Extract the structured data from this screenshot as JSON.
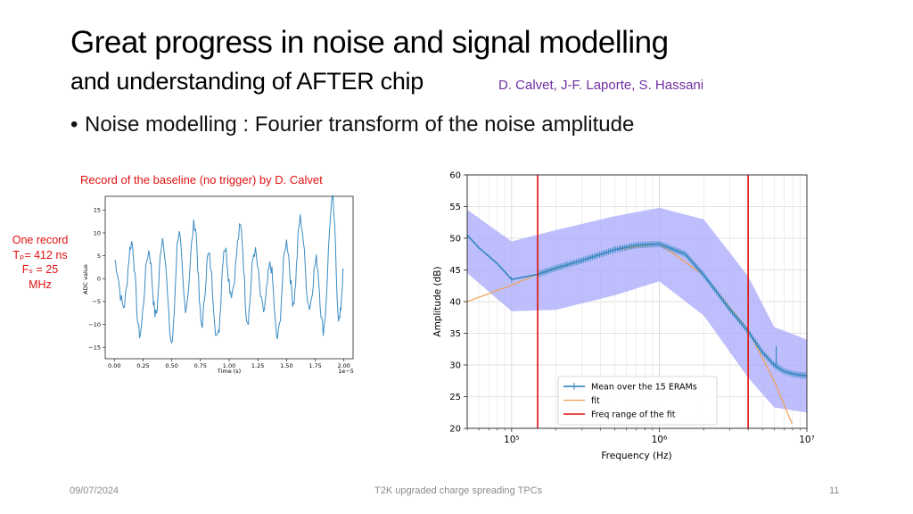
{
  "slide": {
    "title_line1": "Great progress in noise and signal modelling",
    "title_line2": "and understanding of AFTER chip",
    "authors": "D. Calvet, J-F. Laporte, S. Hassani",
    "bullet": "Noise modelling : Fourier transform of the noise amplitude",
    "record_caption": "Record of the baseline (no trigger) by D. Calvet",
    "note_lines": [
      "One record",
      "Tₚ= 412 ns",
      "Fₛ = 25",
      "MHz"
    ],
    "footer_date": "09/07/2024",
    "footer_title": "T2K upgraded charge spreading TPCs",
    "page_number": "11"
  },
  "colors": {
    "accent_red": "#e01010",
    "author_purple": "#7030a0",
    "trace_blue": "#3a8bc3",
    "band": "#a8a8fb",
    "fit_orange": "#f0a050"
  },
  "chart_data": [
    {
      "type": "line",
      "title": "",
      "xlabel": "Time (s)",
      "ylabel": "ADC value",
      "x_multiplier": "1e−5",
      "xlim": [
        -8e-07,
        2.08e-05
      ],
      "ylim": [
        -17.5,
        18
      ],
      "xticks": [
        "0.00",
        "0.25",
        "0.50",
        "0.75",
        "1.00",
        "1.25",
        "1.50",
        "1.75",
        "2.00"
      ],
      "yticks": [
        "15",
        "10",
        "5",
        "0",
        "−5",
        "−10",
        "−15"
      ],
      "series": [
        {
          "x": [
            0.0,
            0.08,
            0.15,
            0.22,
            0.3,
            0.36,
            0.42,
            0.5,
            0.56,
            0.62,
            0.7,
            0.76,
            0.82,
            0.9,
            0.96,
            1.02,
            1.1,
            1.16,
            1.22,
            1.3,
            1.36,
            1.42,
            1.5,
            1.56,
            1.62,
            1.7,
            1.76,
            1.82,
            1.9,
            1.96,
            2.0
          ],
          "y": [
            4,
            -6,
            8,
            -12,
            6,
            -8,
            9,
            -14,
            10,
            -6,
            12,
            -10,
            5,
            -13,
            7,
            -3,
            11,
            -9,
            6,
            -7,
            3,
            -13,
            8,
            -5,
            13,
            -6,
            4,
            -11,
            17,
            -9,
            2
          ]
        }
      ]
    },
    {
      "type": "line",
      "title": "",
      "xlabel": "Frequency (Hz)",
      "ylabel": "Amplitude (dB)",
      "xscale": "log",
      "xlim": [
        50000,
        10000000
      ],
      "ylim": [
        20,
        60
      ],
      "xtick_labels": [
        "10⁵",
        "10⁶",
        "10⁷"
      ],
      "yticks": [
        20,
        25,
        30,
        35,
        40,
        45,
        50,
        55,
        60
      ],
      "legend": {
        "placement": "lower-left",
        "entries": [
          "Mean over the 15 ERAMs",
          "fit",
          "Freq range of the fit"
        ]
      },
      "grid": true,
      "vertical_lines_hz": [
        150000,
        4000000
      ],
      "series": [
        {
          "name": "Mean over the 15 ERAMs",
          "x": [
            50000,
            60000,
            80000,
            100000,
            150000,
            200000,
            300000,
            500000,
            700000,
            1000000,
            1500000,
            2000000,
            3000000,
            4000000,
            5000000,
            6000000,
            7000000,
            8000000,
            9000000,
            10000000
          ],
          "y": [
            50.5,
            48.5,
            46,
            43.5,
            44.3,
            45.3,
            46.5,
            48.2,
            48.9,
            49.1,
            47.5,
            44.2,
            38.8,
            35.3,
            32.0,
            30.0,
            29.0,
            28.6,
            28.4,
            28.3
          ]
        },
        {
          "name": "fit",
          "x": [
            50000,
            100000,
            150000,
            300000,
            500000,
            1000000,
            2000000,
            4000000,
            6000000,
            8000000
          ],
          "y": [
            40.0,
            42.6,
            44.3,
            46.5,
            48.2,
            49.1,
            44.2,
            35.5,
            27.5,
            20.5
          ]
        },
        {
          "name": "band upper",
          "x": [
            50000,
            100000,
            200000,
            500000,
            1000000,
            2000000,
            4000000,
            6000000,
            10000000
          ],
          "y": [
            54.5,
            49.5,
            51.3,
            53.5,
            54.8,
            53.0,
            44.0,
            36.0,
            34.0
          ]
        },
        {
          "name": "band lower",
          "x": [
            50000,
            100000,
            200000,
            500000,
            1000000,
            2000000,
            4000000,
            6000000,
            10000000
          ],
          "y": [
            44.5,
            38.5,
            38.7,
            41.0,
            43.2,
            37.8,
            28.0,
            23.3,
            22.5
          ]
        }
      ]
    }
  ]
}
